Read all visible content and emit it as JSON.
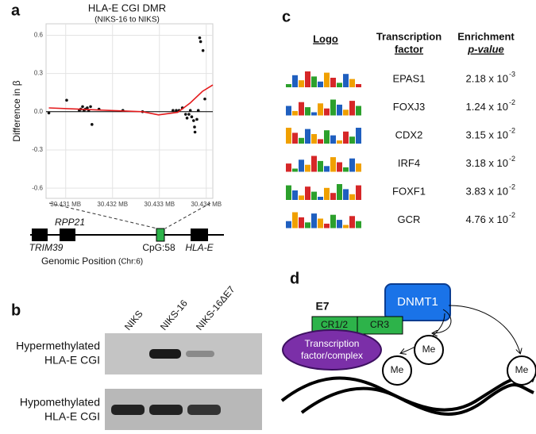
{
  "panel_labels": [
    "a",
    "b",
    "c",
    "d"
  ],
  "chart_data": {
    "type": "scatter",
    "title": "HLA-E CGI DMR",
    "subtitle": "(NIKS-16 to NIKS)",
    "ylabel": "Difference in β",
    "xlim": [
      30.43058,
      30.43414
    ],
    "ylim": [
      -0.68,
      0.69
    ],
    "grid": true,
    "xticks": [
      {
        "value": 30.431,
        "label": "30.431 MB"
      },
      {
        "value": 30.432,
        "label": "30.432 MB"
      },
      {
        "value": 30.433,
        "label": "30.433 MB"
      },
      {
        "value": 30.434,
        "label": "30.434 MB"
      }
    ],
    "yticks": [
      -0.6,
      -0.3,
      {
        "value": 0,
        "label": "0.0"
      },
      0.3,
      0.6
    ],
    "series": [
      {
        "kind": "points",
        "color": "#111111",
        "x": [
          30.43064,
          30.43102,
          30.43129,
          30.43132,
          30.43136,
          30.43139,
          30.43142,
          30.43146,
          30.43149,
          30.43153,
          30.43156,
          30.43171,
          30.43222,
          30.43264,
          30.43329,
          30.43336,
          30.43342,
          30.43349,
          30.43356,
          30.43359,
          30.43363,
          30.43366,
          30.43369,
          30.43373,
          30.43375,
          30.43376,
          30.4338,
          30.43383,
          30.43386,
          30.43388,
          30.43393,
          30.43397
        ],
        "values": [
          -0.01,
          0.09,
          0.01,
          0.02,
          0.04,
          0.01,
          0.02,
          0.03,
          0.01,
          0.04,
          -0.1,
          0.02,
          0.01,
          0.0,
          0.01,
          0.01,
          0.01,
          0.03,
          -0.02,
          -0.05,
          -0.02,
          0.01,
          -0.04,
          -0.07,
          -0.12,
          -0.16,
          -0.06,
          0.01,
          0.58,
          0.55,
          0.48,
          0.1
        ]
      },
      {
        "kind": "line",
        "color": "#e41a1c",
        "x": [
          30.43064,
          30.43129,
          30.43193,
          30.43264,
          30.43298,
          30.43339,
          30.43366,
          30.43392,
          30.43414
        ],
        "values": [
          0.03,
          0.02,
          0.01,
          0.0,
          -0.025,
          -0.005,
          0.07,
          0.16,
          0.21
        ]
      }
    ]
  },
  "gene_map": {
    "genes": [
      "TRIM39",
      "RPP21",
      "CpG:58",
      "HLA-E"
    ],
    "xlabel": "Genomic Position",
    "xlabel_note": "(Chr:6)"
  },
  "gel": {
    "lanes": [
      "NIKS",
      "NIKS-16",
      "NIKS-16ΔE7"
    ],
    "rows": [
      [
        "Hypermethylated",
        "HLA-E CGI"
      ],
      [
        "Hypomethylated",
        "HLA-E CGI"
      ]
    ]
  },
  "table": {
    "header": [
      [
        "Logo"
      ],
      [
        "Transcription",
        "factor"
      ],
      [
        "Enrichment",
        "p-value"
      ]
    ],
    "rows": [
      [
        "EPAS1",
        "2.18 x 10",
        "-3"
      ],
      [
        "FOXJ3",
        "1.24 x 10",
        "-2"
      ],
      [
        "CDX2",
        "3.15 x 10",
        "-2"
      ],
      [
        "IRF4",
        "3.18 x 10",
        "-2"
      ],
      [
        "FOXF1",
        "3.83 x 10",
        "-2"
      ],
      [
        "GCR",
        "4.76 x 10",
        "-2"
      ]
    ]
  },
  "diagram": {
    "e7": "E7",
    "domains": [
      "CR1/2",
      "CR3"
    ],
    "dnmt1": "DNMT1",
    "tf": [
      "Transcription",
      "factor/complex"
    ],
    "me": [
      "Me",
      "Me",
      "Me"
    ]
  }
}
